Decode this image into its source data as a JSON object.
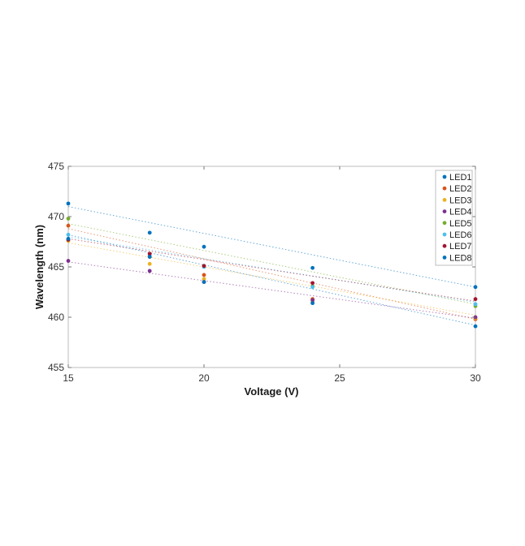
{
  "chart_data": {
    "type": "scatter",
    "title": "",
    "xlabel": "Voltage (V)",
    "ylabel": "Wavelength (nm)",
    "xlim": [
      15,
      30
    ],
    "ylim": [
      455,
      475
    ],
    "xticks": [
      15,
      20,
      25,
      30
    ],
    "yticks": [
      455,
      460,
      465,
      470,
      475
    ],
    "grid": false,
    "legend_position": "top-right",
    "x": [
      15,
      18,
      20,
      24,
      30
    ],
    "series": [
      {
        "name": "LED1",
        "color": "#0072BD",
        "values": [
          471.3,
          468.4,
          467.0,
          464.9,
          463.0
        ],
        "trend": [
          471.0,
          463.0
        ]
      },
      {
        "name": "LED2",
        "color": "#D95319",
        "values": [
          469.1,
          466.0,
          464.2,
          461.8,
          459.8
        ],
        "trend": [
          468.8,
          459.8
        ]
      },
      {
        "name": "LED3",
        "color": "#EDB120",
        "values": [
          467.6,
          465.3,
          463.8,
          461.5,
          459.9
        ],
        "trend": [
          467.4,
          460.2
        ]
      },
      {
        "name": "LED4",
        "color": "#7E2F8E",
        "values": [
          465.6,
          464.6,
          463.5,
          461.7,
          460.0
        ],
        "trend": [
          465.5,
          459.9
        ]
      },
      {
        "name": "LED5",
        "color": "#77AC30",
        "values": [
          469.8,
          466.3,
          465.1,
          463.1,
          461.1
        ],
        "trend": [
          469.3,
          461.3
        ]
      },
      {
        "name": "LED6",
        "color": "#4DBEEE",
        "values": [
          468.2,
          466.1,
          465.0,
          463.0,
          461.3
        ],
        "trend": [
          468.0,
          461.5
        ]
      },
      {
        "name": "LED7",
        "color": "#A2142F",
        "values": [
          467.7,
          466.3,
          465.1,
          463.4,
          461.8
        ],
        "trend": [
          467.8,
          461.6
        ]
      },
      {
        "name": "LED8",
        "color": "#0072BD",
        "values": [
          467.8,
          466.0,
          463.5,
          461.4,
          459.1
        ],
        "trend": [
          468.2,
          459.2
        ]
      }
    ]
  }
}
